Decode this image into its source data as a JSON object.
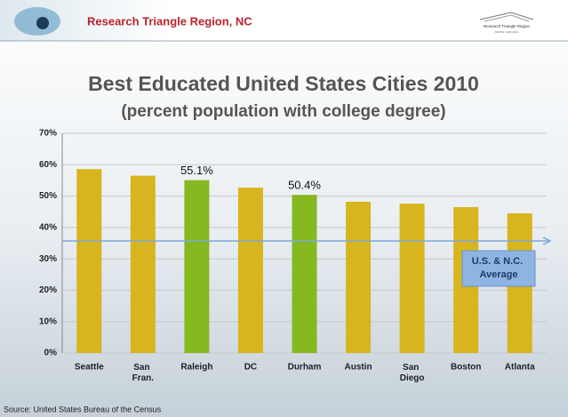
{
  "header": {
    "title": "Research Triangle Region, NC",
    "logo_text": "Research Triangle Region",
    "logo_subtext": "NORTH CAROLINA"
  },
  "source": "Source: United States Bureau of the Census",
  "chart_data": {
    "type": "bar",
    "title": "Best Educated United States Cities 2010",
    "subtitle": "(percent population with college degree)",
    "categories": [
      "Seattle",
      "San Fran.",
      "Raleigh",
      "DC",
      "Durham",
      "Austin",
      "San Diego",
      "Boston",
      "Atlanta"
    ],
    "values": [
      58.6,
      56.5,
      55.1,
      52.7,
      50.4,
      48.2,
      47.6,
      46.5,
      44.5
    ],
    "value_labels": [
      null,
      null,
      "55.1%",
      null,
      "50.4%",
      null,
      null,
      null,
      null
    ],
    "colors": [
      "#d8b41e",
      "#d8b41e",
      "#86b81f",
      "#d8b41e",
      "#86b81f",
      "#d8b41e",
      "#d8b41e",
      "#d8b41e",
      "#d8b41e"
    ],
    "ylim": [
      0,
      70
    ],
    "yticks": [
      {
        "value": 0,
        "label": "0%"
      },
      {
        "value": 10,
        "label": "10%"
      },
      {
        "value": 20,
        "label": "20%"
      },
      {
        "value": 30,
        "label": "30%"
      },
      {
        "value": 40,
        "label": "40%"
      },
      {
        "value": 50,
        "label": "50%"
      },
      {
        "value": 60,
        "label": "60%"
      },
      {
        "value": 70,
        "label": "70%"
      }
    ],
    "grid": true,
    "reference_line": {
      "value": 35.7,
      "label": "U.S. & N.C. Average",
      "color": "#7fa7d8"
    }
  }
}
